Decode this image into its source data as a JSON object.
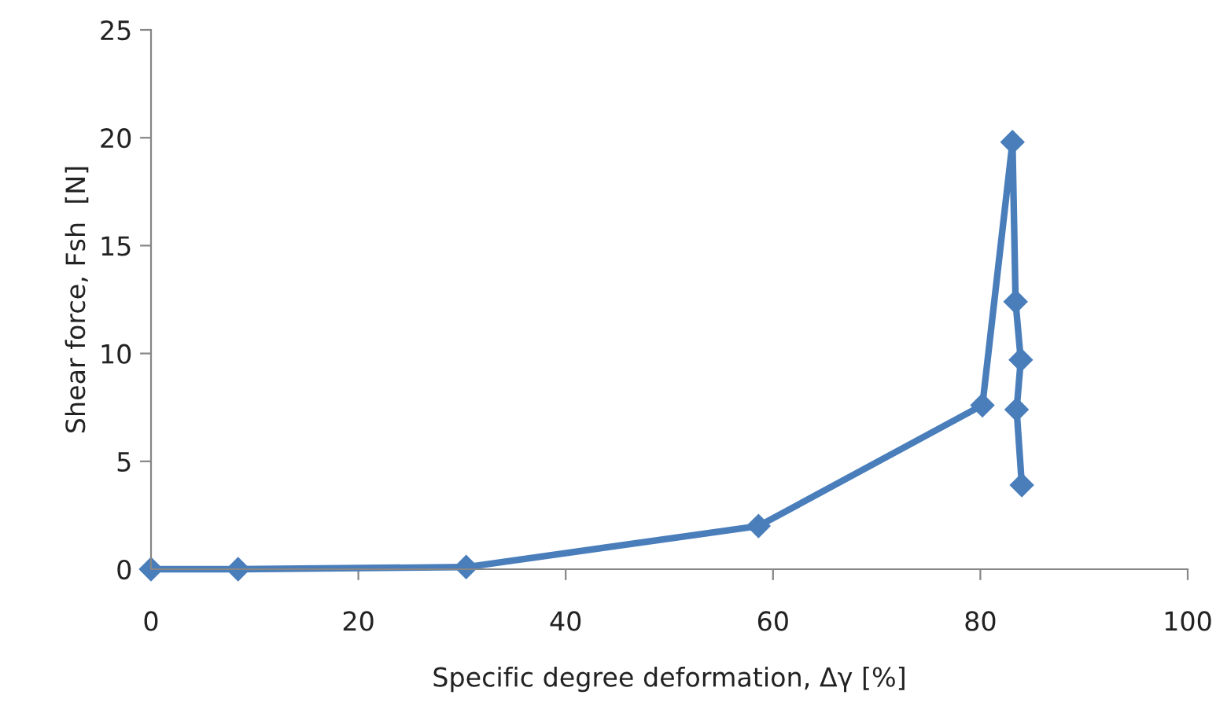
{
  "chart_data": {
    "type": "line",
    "xlabel": "Specific degree deformation, Δγ [%]",
    "ylabel": "Shear force, Fsh  [N]",
    "series": [
      {
        "color": "#4a7ebb",
        "x": [
          0,
          8.4,
          30.4,
          58.6,
          80.2,
          83.1,
          83.4,
          83.9,
          83.5,
          84.0
        ],
        "values": [
          0,
          0,
          0.1,
          2.0,
          7.6,
          19.8,
          12.4,
          9.7,
          7.4,
          3.9
        ]
      }
    ],
    "xlim": [
      0,
      100
    ],
    "xticks": [
      0,
      20,
      40,
      60,
      80,
      100
    ],
    "ylim": [
      0,
      25
    ],
    "yticks": [
      0,
      5,
      10,
      15,
      20,
      25
    ],
    "marker": "diamond",
    "line_style": "solid",
    "grid": false,
    "legend": false
  }
}
